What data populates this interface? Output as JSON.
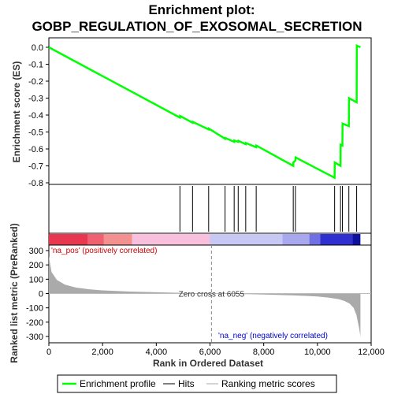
{
  "chart_data": {
    "type": "line",
    "title_line1": "Enrichment plot:",
    "title_line2": "GOBP_REGULATION_OF_EXOSOMAL_SECRETION",
    "es_panel": {
      "ylabel": "Enrichment score (ES)",
      "ylim": [
        -0.8,
        0.0
      ],
      "yticks": [
        0.0,
        -0.1,
        -0.2,
        -0.3,
        -0.4,
        -0.5,
        -0.6,
        -0.7,
        -0.8
      ],
      "ytick_labels": [
        "0.0",
        "-0.1",
        "-0.2",
        "-0.3",
        "-0.4",
        "-0.5",
        "-0.6",
        "-0.7",
        "-0.8"
      ],
      "color": "#00ff00",
      "grid": false,
      "series": [
        {
          "name": "Enrichment profile",
          "x": [
            0,
            4880,
            4885,
            5350,
            5355,
            5950,
            5955,
            6560,
            6565,
            6900,
            6905,
            7050,
            7055,
            7330,
            7335,
            7720,
            7725,
            9100,
            9105,
            9180,
            9185,
            10640,
            10645,
            10860,
            10865,
            10930,
            10935,
            11170,
            11175,
            11460,
            11465,
            11600
          ],
          "y": [
            0.0,
            -0.415,
            -0.405,
            -0.445,
            -0.44,
            -0.485,
            -0.48,
            -0.54,
            -0.535,
            -0.558,
            -0.55,
            -0.558,
            -0.552,
            -0.572,
            -0.565,
            -0.59,
            -0.58,
            -0.7,
            -0.68,
            -0.668,
            -0.65,
            -0.77,
            -0.68,
            -0.7,
            -0.575,
            -0.58,
            -0.45,
            -0.465,
            -0.3,
            -0.325,
            0.01,
            0.0
          ]
        }
      ]
    },
    "hits_panel": {
      "legend_name": "Hits",
      "hit_ranks": [
        4880,
        5350,
        5950,
        6560,
        6900,
        7050,
        7330,
        7720,
        9100,
        9180,
        10640,
        10860,
        10930,
        11170,
        11460
      ]
    },
    "ranking_bar": {
      "segments": [
        {
          "end": 1450,
          "color": "#e8384f"
        },
        {
          "end": 2050,
          "color": "#f06070"
        },
        {
          "end": 3100,
          "color": "#f49090"
        },
        {
          "end": 6000,
          "color": "#f8c0dc"
        },
        {
          "end": 8700,
          "color": "#c8c8f4"
        },
        {
          "end": 9700,
          "color": "#a8a8ee"
        },
        {
          "end": 10100,
          "color": "#7070e4"
        },
        {
          "end": 11300,
          "color": "#3030d0"
        },
        {
          "end": 11600,
          "color": "#1010a0"
        }
      ]
    },
    "rank_panel": {
      "ylabel": "Ranked list metric (PreRanked)",
      "ylim": [
        -320,
        340
      ],
      "yticks": [
        300,
        200,
        100,
        0,
        -100,
        -200,
        -300
      ],
      "ytick_labels": [
        "300",
        "200",
        "100",
        "0",
        "-100",
        "-200",
        "-300"
      ],
      "legend_name": "Ranking metric scores",
      "color": "#aaaaaa",
      "curve_x": [
        0,
        100,
        300,
        600,
        1000,
        1500,
        2000,
        3000,
        4000,
        5000,
        6055,
        7000,
        8000,
        9000,
        9500,
        10000,
        10400,
        10800,
        11000,
        11200,
        11350,
        11450,
        11550,
        11600
      ],
      "curve_y": [
        260,
        150,
        95,
        62,
        42,
        30,
        22,
        14,
        9,
        4,
        0,
        -3,
        -7,
        -12,
        -16,
        -21,
        -28,
        -40,
        -52,
        -70,
        -100,
        -150,
        -240,
        -300
      ],
      "zero_cross_label": "Zero cross at 6055",
      "zero_cross_rank": 6055,
      "pos_label": "'na_pos' (positively correlated)",
      "neg_label": "'na_neg' (negatively correlated)",
      "pos_color": "#cc0000",
      "neg_color": "#0000cc"
    },
    "xaxis": {
      "xlabel": "Rank in Ordered Dataset",
      "xlim": [
        0,
        12000
      ],
      "xticks": [
        0,
        2000,
        4000,
        6000,
        8000,
        10000,
        12000
      ],
      "xtick_labels": [
        "0",
        "2,000",
        "4,000",
        "6,000",
        "8,000",
        "10,000",
        "12,000"
      ]
    },
    "legend": {
      "placement": "bottom",
      "entries": [
        "Enrichment profile",
        "Hits",
        "Ranking metric scores"
      ]
    }
  }
}
